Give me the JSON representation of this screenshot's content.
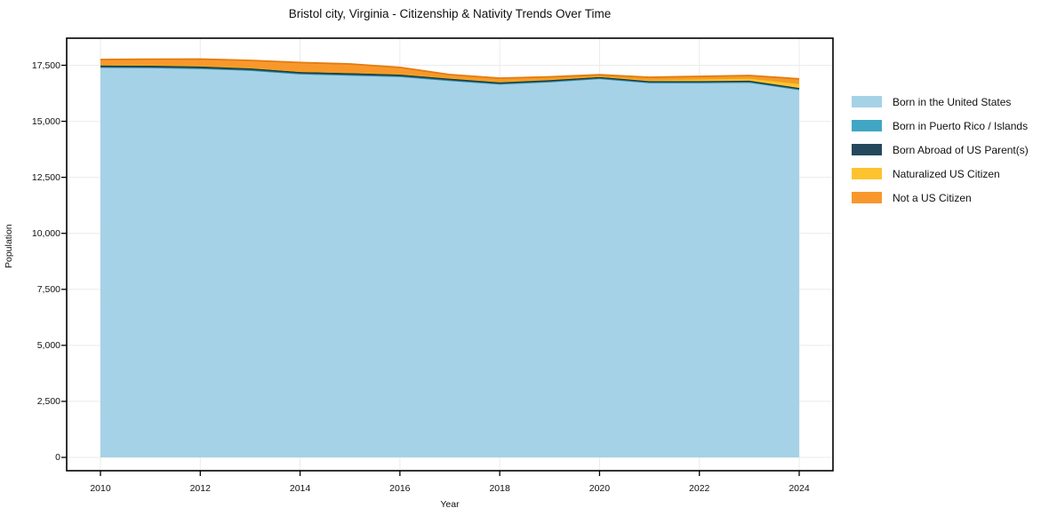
{
  "chart_data": {
    "type": "area",
    "stacked": true,
    "title": "Bristol city, Virginia - Citizenship & Nativity Trends Over Time",
    "xlabel": "Year",
    "ylabel": "Population",
    "x": [
      2010,
      2011,
      2012,
      2013,
      2014,
      2015,
      2016,
      2017,
      2018,
      2019,
      2020,
      2021,
      2022,
      2023,
      2024
    ],
    "series": [
      {
        "name": "Born in the United States",
        "fill_color": "#a6d2e7",
        "edge_color": "#85bdd9",
        "values": [
          17411,
          17400,
          17360,
          17282,
          17124,
          17064,
          17005,
          16826,
          16668,
          16767,
          16913,
          16727,
          16727,
          16747,
          16422
        ]
      },
      {
        "name": "Born in Puerto Rico / Islands",
        "fill_color": "#41a6c4",
        "edge_color": "#2f8aa6",
        "values": [
          8,
          8,
          8,
          8,
          8,
          8,
          8,
          8,
          8,
          8,
          8,
          8,
          8,
          8,
          8
        ]
      },
      {
        "name": "Born Abroad of US Parent(s)",
        "fill_color": "#24495c",
        "edge_color": "#16303e",
        "values": [
          70,
          72,
          75,
          73,
          72,
          75,
          72,
          68,
          64,
          60,
          55,
          55,
          55,
          55,
          55
        ]
      },
      {
        "name": "Naturalized US Citizen",
        "fill_color": "#fdc32f",
        "edge_color": "#e8a713",
        "values": [
          45,
          48,
          55,
          45,
          30,
          38,
          48,
          45,
          52,
          50,
          38,
          72,
          108,
          128,
          210
        ]
      },
      {
        "name": "Not a US Citizen",
        "fill_color": "#f8982c",
        "edge_color": "#e27c0e",
        "values": [
          225,
          245,
          280,
          310,
          390,
          375,
          270,
          138,
          133,
          100,
          60,
          103,
          107,
          107,
          198
        ]
      }
    ],
    "x_ticks": [
      2010,
      2012,
      2014,
      2016,
      2018,
      2020,
      2022,
      2024
    ],
    "x_tick_labels": [
      "2010",
      "2012",
      "2014",
      "2016",
      "2018",
      "2020",
      "2022",
      "2024"
    ],
    "y_ticks": [
      0,
      2500,
      5000,
      7500,
      10000,
      12500,
      15000,
      17500
    ],
    "y_tick_labels": [
      "0",
      "2,500",
      "5,000",
      "7,500",
      "10,000",
      "12,500",
      "15,000",
      "17,500"
    ],
    "xlim": [
      2009.3,
      2024.7
    ],
    "ylim": [
      -594,
      18709
    ],
    "grid": true,
    "grid_color": "#ebebeb",
    "spine_color": "#000000",
    "legend_position": "right"
  }
}
